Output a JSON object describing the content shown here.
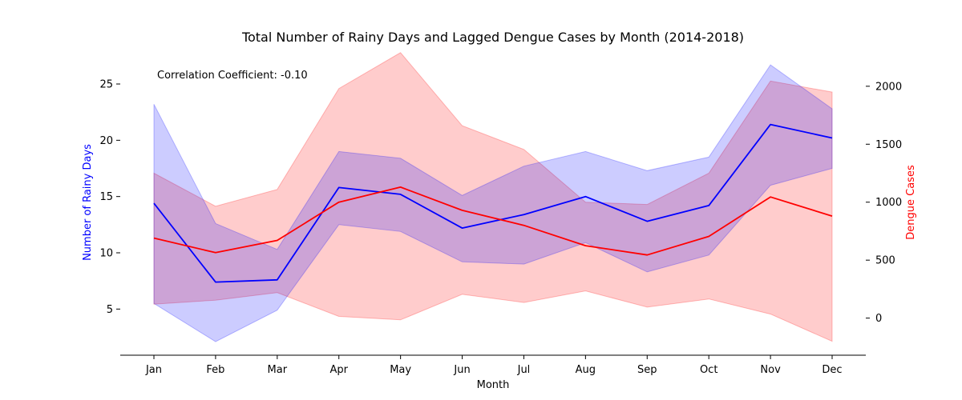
{
  "chart_data": {
    "type": "line",
    "title": "Total Number of Rainy Days and Lagged Dengue Cases by Month (2014-2018)",
    "xlabel": "Month",
    "ylabel_left": "Number of Rainy Days",
    "ylabel_right": "Dengue Cases",
    "annotation": "Correlation Coefficient: -0.10",
    "categories": [
      "Jan",
      "Feb",
      "Mar",
      "Apr",
      "May",
      "Jun",
      "Jul",
      "Aug",
      "Sep",
      "Oct",
      "Nov",
      "Dec"
    ],
    "left_axis": {
      "ylim": [
        0.9,
        28.2
      ],
      "ticks": [
        5,
        10,
        15,
        20,
        25
      ],
      "color": "#0000ff"
    },
    "right_axis": {
      "ylim": [
        -320,
        2330
      ],
      "ticks": [
        0,
        500,
        1000,
        1500,
        2000
      ],
      "color": "#ff0000"
    },
    "series": [
      {
        "axis": "left",
        "color": "#0000ff",
        "values": [
          14.4,
          7.4,
          7.6,
          15.8,
          15.2,
          12.2,
          13.4,
          15.0,
          12.8,
          14.2,
          21.4,
          20.2
        ],
        "band_upper": [
          23.2,
          12.6,
          10.3,
          19.0,
          18.4,
          15.1,
          17.7,
          19.0,
          17.3,
          18.5,
          26.7,
          22.8
        ],
        "band_lower": [
          5.5,
          2.1,
          4.9,
          12.5,
          11.9,
          9.2,
          9.0,
          10.9,
          8.3,
          9.8,
          16.0,
          17.5
        ]
      },
      {
        "axis": "right",
        "color": "#ff0000",
        "values": [
          690,
          565,
          670,
          1000,
          1130,
          930,
          800,
          625,
          545,
          705,
          1045,
          880
        ],
        "band_upper": [
          1250,
          965,
          1110,
          1980,
          2290,
          1660,
          1455,
          1000,
          980,
          1250,
          2045,
          1950
        ],
        "band_lower": [
          120,
          155,
          220,
          15,
          -15,
          205,
          135,
          235,
          95,
          165,
          35,
          -200
        ]
      }
    ]
  }
}
